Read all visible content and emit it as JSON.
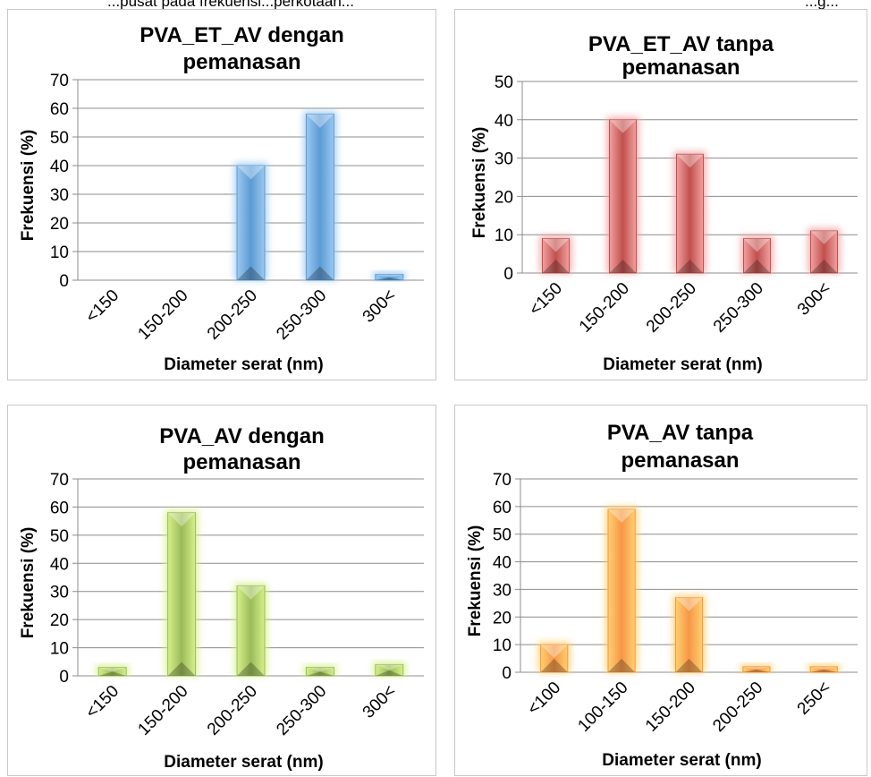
{
  "header_text": {
    "left": "...pusat pada frekuensi...perkotaan...",
    "right": "...g..."
  },
  "chart_data": [
    {
      "type": "bar",
      "title": [
        "PVA_ET_AV dengan",
        "pemanasan"
      ],
      "xlabel": "Diameter serat (nm)",
      "ylabel": "Frekuensi (%)",
      "categories": [
        "<150",
        "150-200",
        "200-250",
        "250-300",
        "300<"
      ],
      "values": [
        0,
        0,
        40,
        58,
        2
      ],
      "ylim": [
        0,
        70
      ],
      "yticks": [
        0,
        10,
        20,
        30,
        40,
        50,
        60,
        70
      ],
      "grid": true,
      "bar_color": "#5b9bd5",
      "glow_color": "#9cc8f0"
    },
    {
      "type": "bar",
      "title": [
        "PVA_ET_AV tanpa",
        "pemanasan"
      ],
      "xlabel": "Diameter serat (nm)",
      "ylabel": "Frekuensi (%)",
      "categories": [
        "<150",
        "150-200",
        "200-250",
        "250-300",
        "300<"
      ],
      "values": [
        9,
        40,
        31,
        9,
        11
      ],
      "ylim": [
        0,
        50
      ],
      "yticks": [
        0,
        10,
        20,
        30,
        40,
        50
      ],
      "grid": true,
      "bar_color": "#c0504d",
      "glow_color": "#f2a0a0"
    },
    {
      "type": "bar",
      "title": [
        "PVA_AV dengan",
        "pemanasan"
      ],
      "xlabel": "Diameter serat (nm)",
      "ylabel": "Frekuensi (%)",
      "categories": [
        "<150",
        "150-200",
        "200-250",
        "250-300",
        "300<"
      ],
      "values": [
        3,
        58,
        32,
        3,
        4
      ],
      "ylim": [
        0,
        70
      ],
      "yticks": [
        0,
        10,
        20,
        30,
        40,
        50,
        60,
        70
      ],
      "grid": true,
      "bar_color": "#9bbb59",
      "glow_color": "#d6f08a"
    },
    {
      "type": "bar",
      "title": [
        "PVA_AV tanpa",
        "pemanasan"
      ],
      "xlabel": "Diameter serat (nm)",
      "ylabel": "Frekuensi (%)",
      "categories": [
        "<100",
        "100-150",
        "150-200",
        "200-250",
        "250<"
      ],
      "values": [
        10,
        59,
        27,
        2,
        2
      ],
      "ylim": [
        0,
        70
      ],
      "yticks": [
        0,
        10,
        20,
        30,
        40,
        50,
        60,
        70
      ],
      "grid": true,
      "bar_color": "#f79646",
      "glow_color": "#ffd070"
    }
  ]
}
